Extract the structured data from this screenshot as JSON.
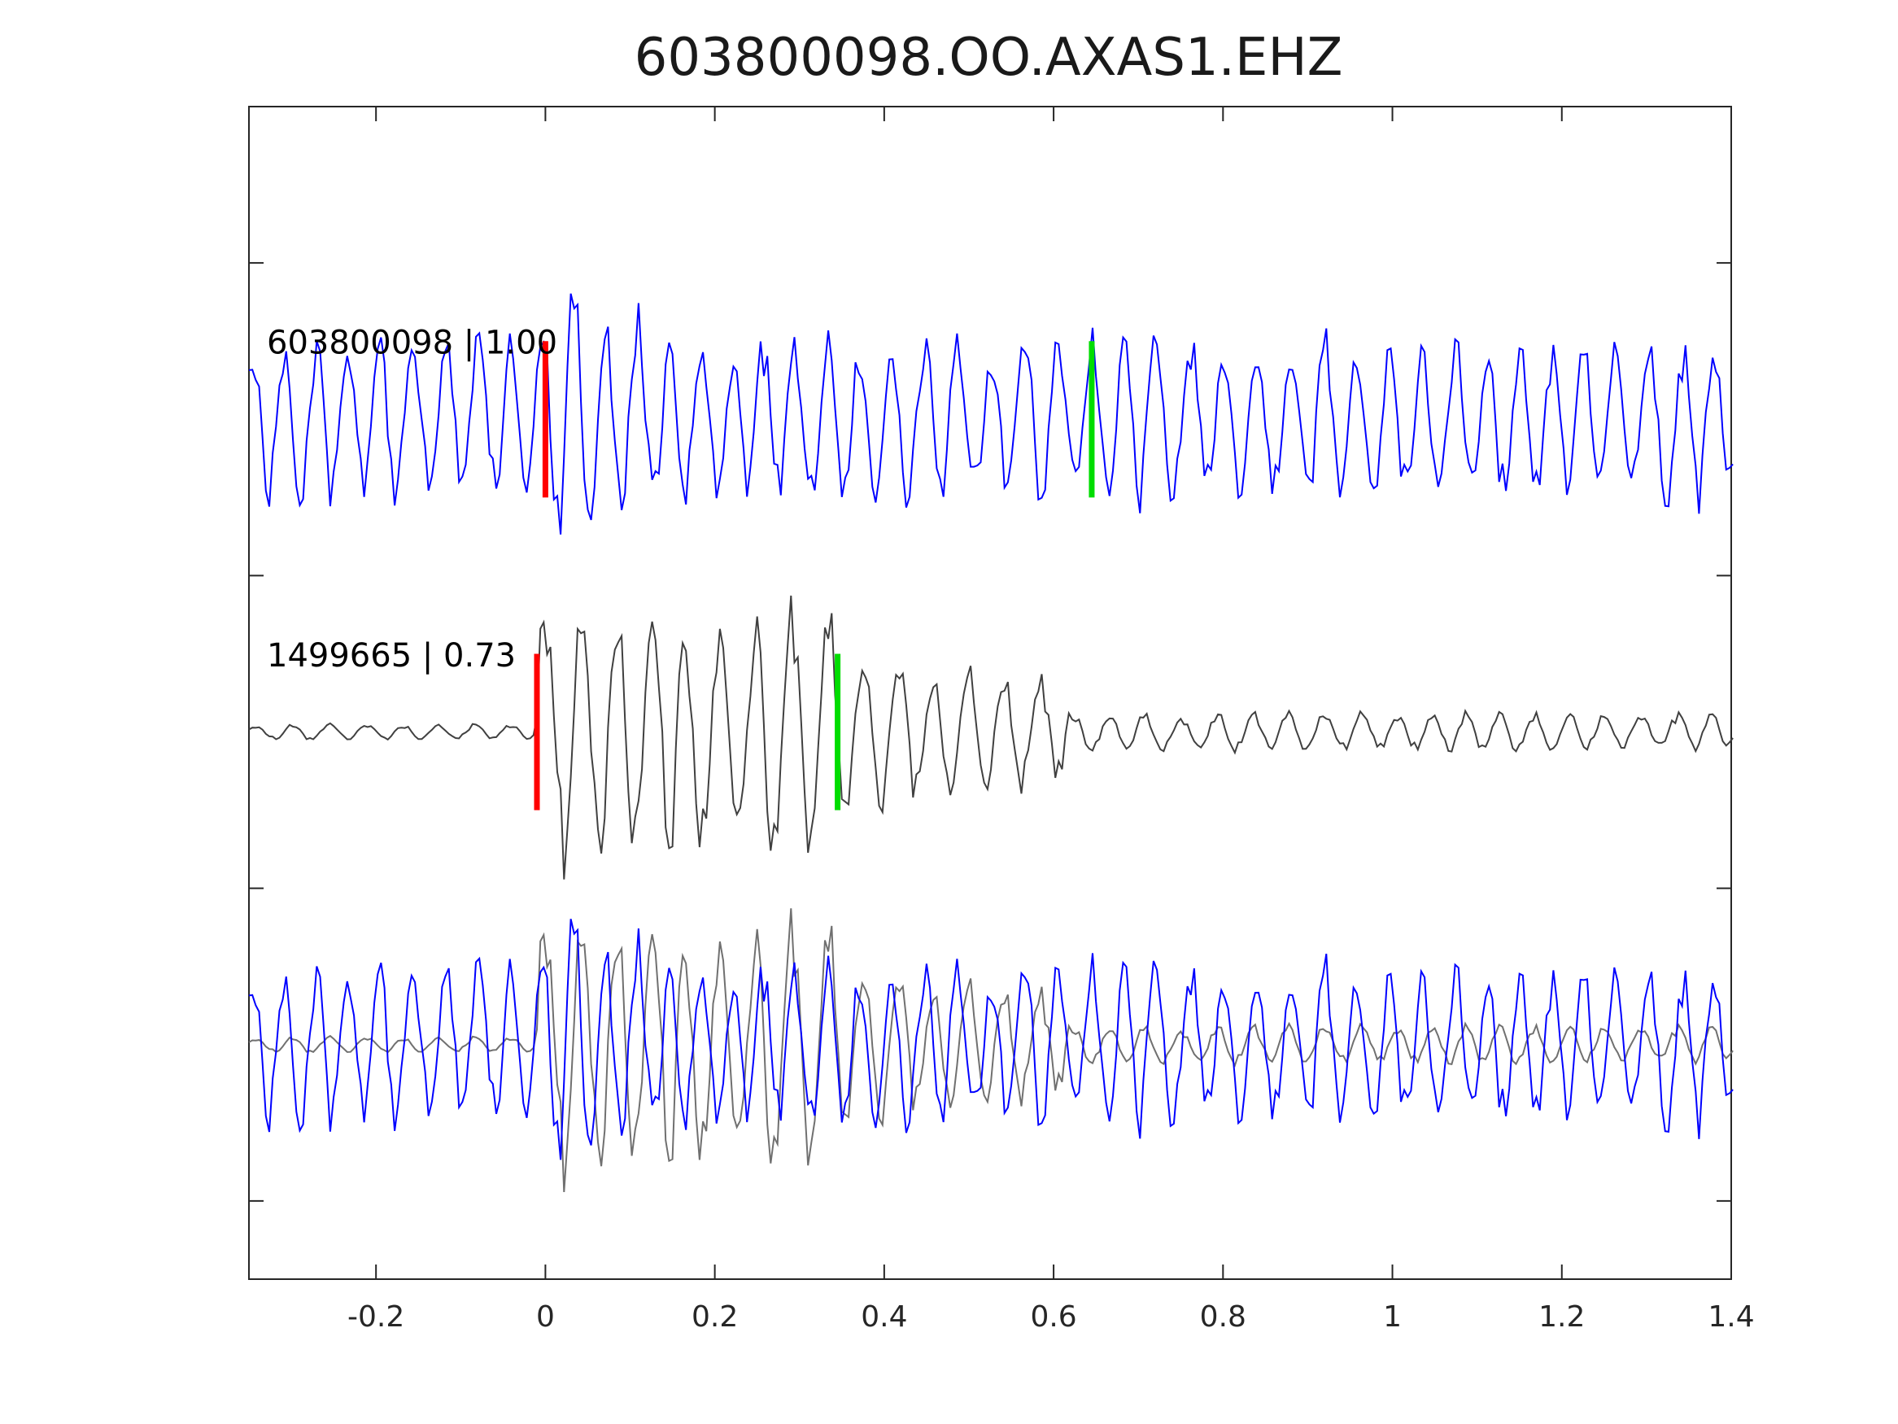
{
  "chart_data": {
    "type": "line",
    "title": "603800098.OO.AXAS1.EHZ",
    "xlabel": "",
    "ylabel": "",
    "xlim": [
      -0.35,
      1.4
    ],
    "ylim": [
      0,
      7.5
    ],
    "xticks": [
      "-0.2",
      "0",
      "0.2",
      "0.4",
      "0.6",
      "0.8",
      "1",
      "1.2",
      "1.4"
    ],
    "xtick_values": [
      -0.2,
      0,
      0.2,
      0.4,
      0.6,
      0.8,
      1,
      1.2,
      1.4
    ],
    "ytick_values": [
      0.5,
      2.5,
      4.5,
      6.5
    ],
    "grid": false,
    "sample_dt": 0.004,
    "traces": [
      {
        "label": "603800098 | 1.00",
        "baseline": 5.5,
        "color": "#0000ff",
        "picks": [
          {
            "kind": "P",
            "x": 0.0,
            "color": "#ff0000"
          },
          {
            "kind": "S",
            "x": 0.645,
            "color": "#00dd00"
          }
        ]
      },
      {
        "label": "1499665 | 0.73",
        "baseline": 3.5,
        "color": "#404040",
        "picks": [
          {
            "kind": "P",
            "x": -0.01,
            "color": "#ff0000"
          },
          {
            "kind": "S",
            "x": 0.345,
            "color": "#00dd00"
          }
        ]
      },
      {
        "label": "",
        "baseline": 1.5,
        "overlay": true,
        "colors": [
          "#0000ff",
          "#707070"
        ]
      }
    ]
  }
}
